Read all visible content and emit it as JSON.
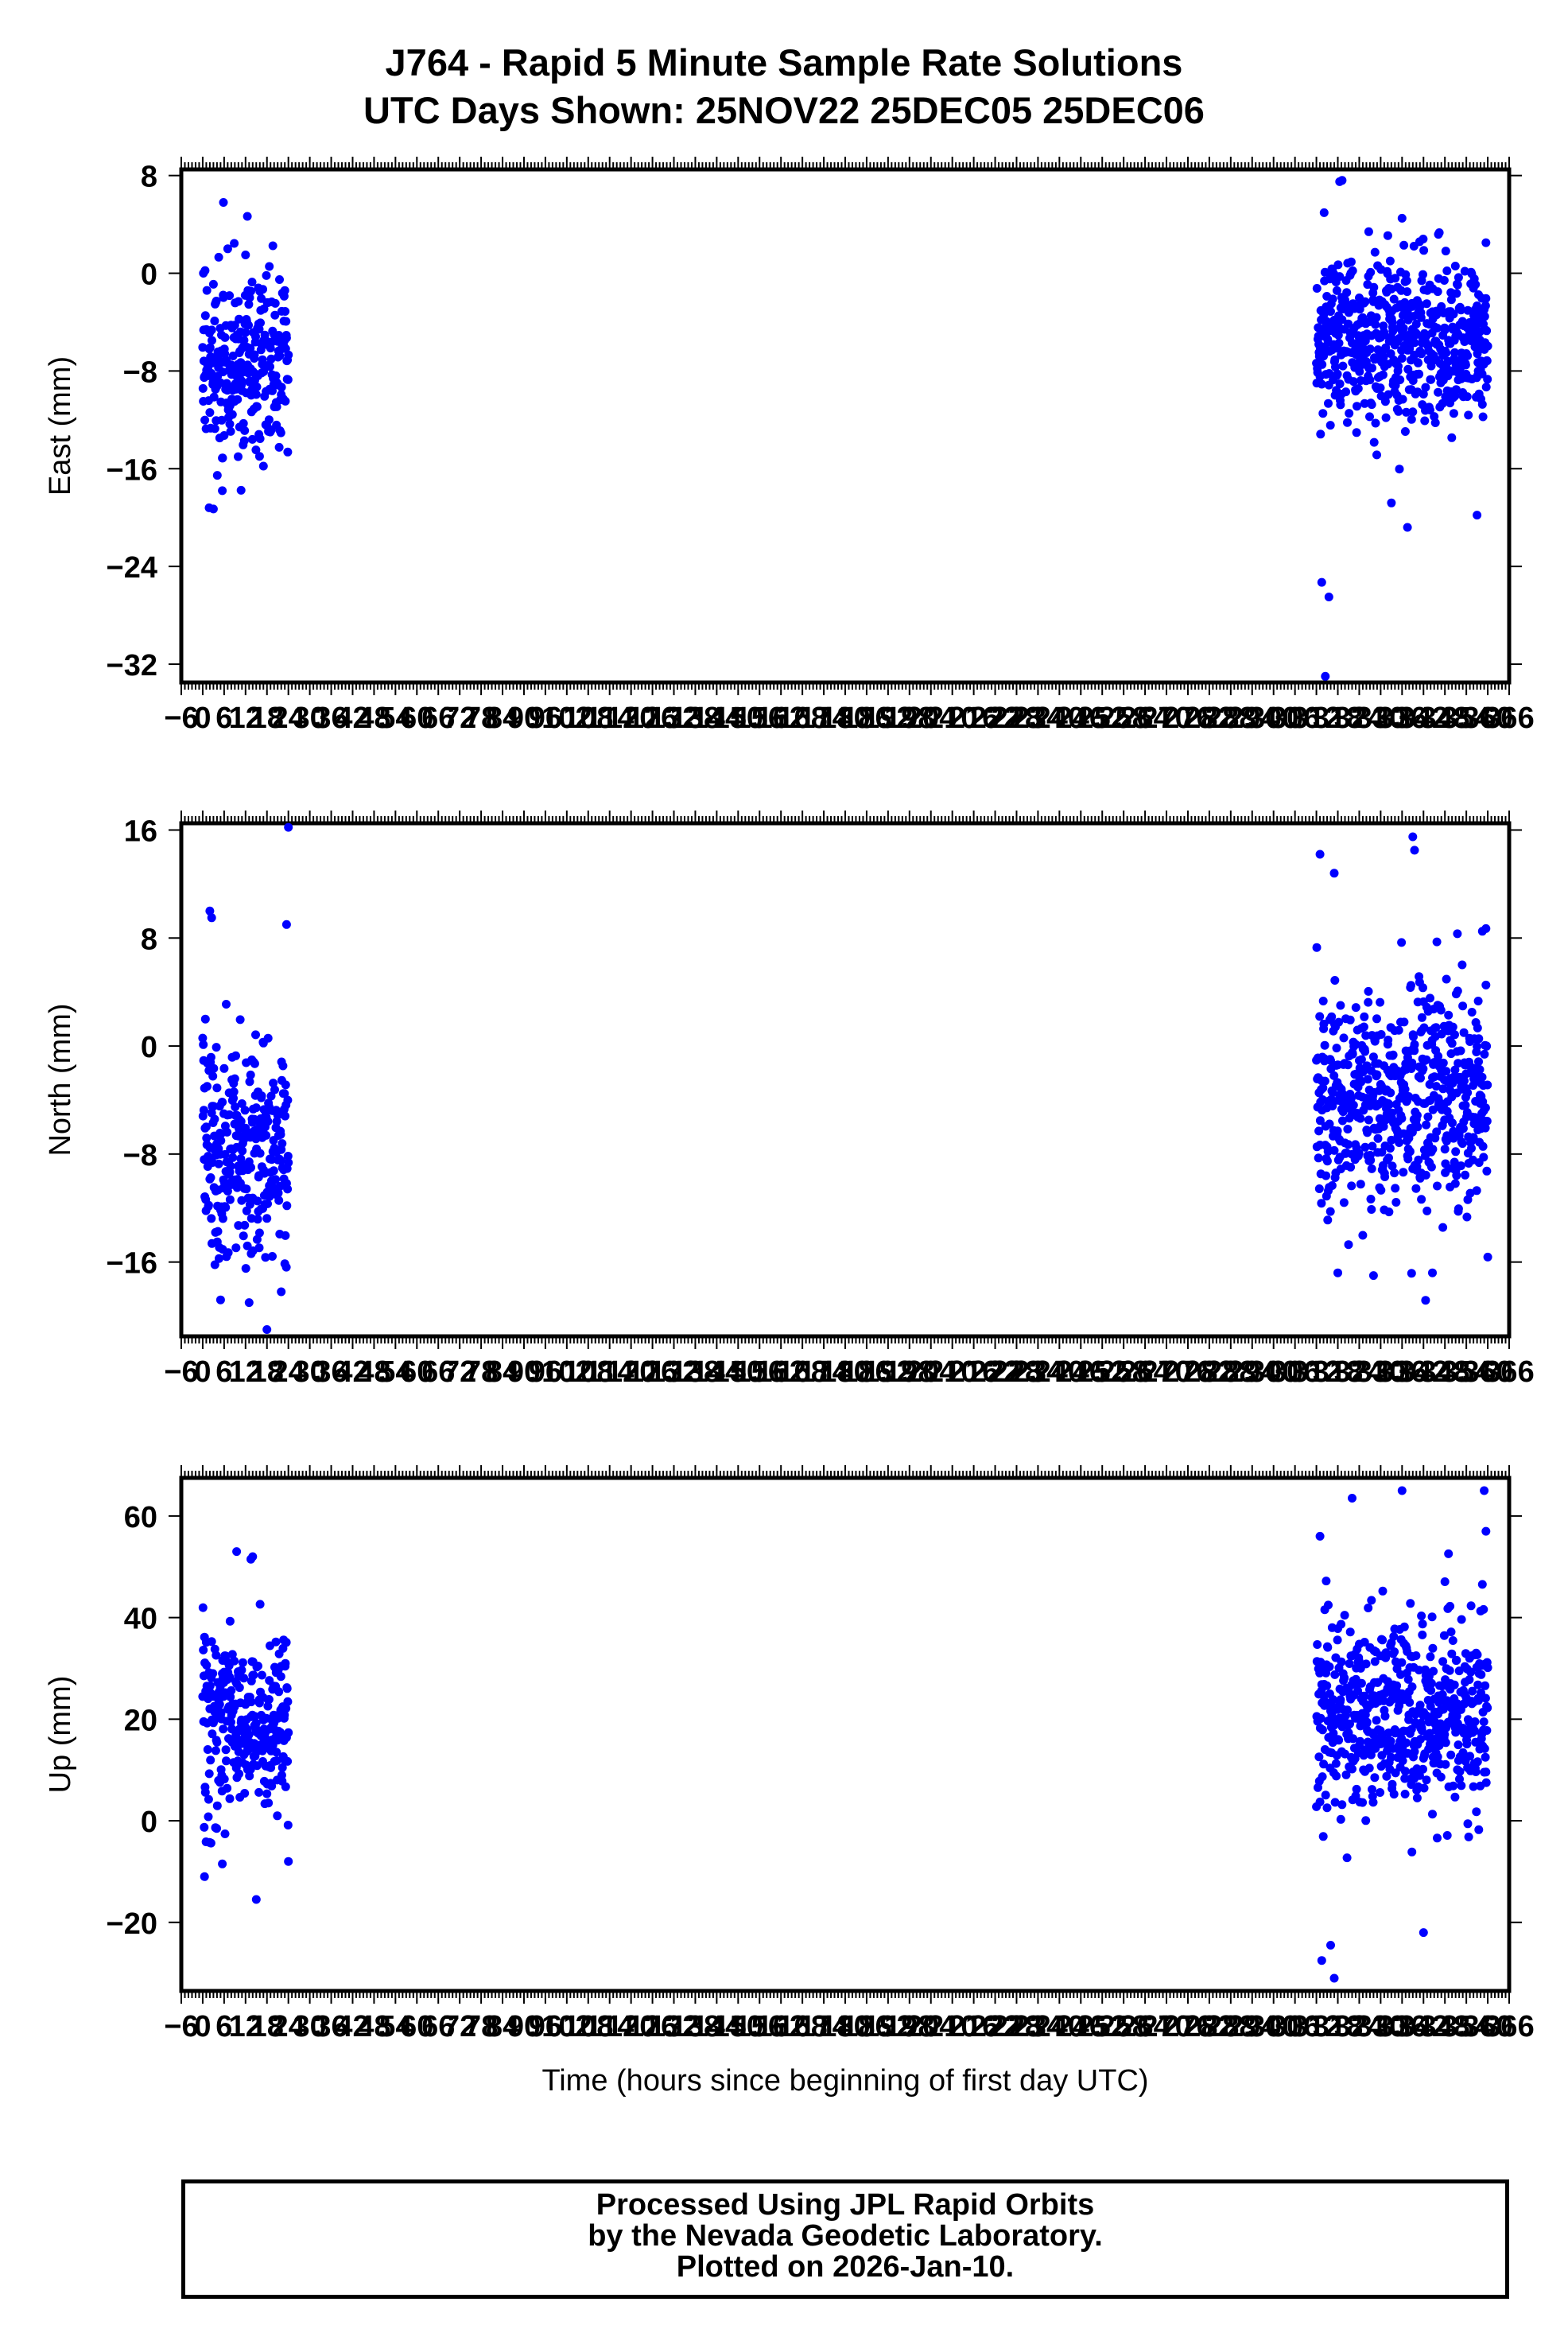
{
  "title_line1": "J764 - Rapid 5 Minute Sample Rate Solutions",
  "title_line2": "UTC Days Shown:  25NOV22 25DEC05 25DEC06",
  "footer": {
    "line1": "Processed Using JPL Rapid Orbits",
    "line2": "by the Nevada Geodetic Laboratory.",
    "line3": "Plotted on 2026-Jan-10."
  },
  "colors": {
    "points": "#0000ff",
    "frame": "#000000"
  },
  "chart_data": [
    {
      "type": "scatter",
      "name": "east",
      "ylabel": "East (mm)",
      "xlabel": "",
      "xlim": [
        -6,
        366
      ],
      "ylim": [
        -33.5,
        8.5
      ],
      "yticks": [
        8,
        0,
        -8,
        -16,
        -24,
        -32
      ],
      "xtick_labels": [
        "-6",
        "0",
        "6",
        "12",
        "18",
        "24",
        "30",
        "36",
        "42",
        "48",
        "54",
        "60",
        "66",
        "72",
        "78",
        "84",
        "90",
        "96",
        "102",
        "108",
        "114",
        "120",
        "126",
        "132",
        "138",
        "144",
        "150",
        "156",
        "162",
        "168",
        "174",
        "180",
        "186",
        "192",
        "198",
        "204",
        "210",
        "216",
        "222",
        "228",
        "234",
        "240",
        "246",
        "252",
        "258",
        "264",
        "270",
        "276",
        "282",
        "288",
        "294",
        "300",
        "306",
        "312",
        "318",
        "324",
        "330",
        "336",
        "342",
        "348",
        "354",
        "360",
        "366"
      ],
      "point_color": "#0000ff",
      "segments": [
        {
          "x_start": 0.0,
          "x_end": 24.0,
          "center": -7.5,
          "spread": 3.5,
          "extremes": [
            [
              0.2,
              0.0
            ],
            [
              5.8,
              5.8
            ],
            [
              7.0,
              2.0
            ],
            [
              12.0,
              1.5
            ],
            [
              1.8,
              -19.2
            ],
            [
              3.0,
              -19.3
            ],
            [
              5.5,
              -17.8
            ]
          ]
        },
        {
          "x_start": 312.0,
          "x_end": 360.0,
          "center": -5.5,
          "spread": 3.3,
          "extremes": [
            [
              318.5,
              7.5
            ],
            [
              319.2,
              7.6
            ],
            [
              336.0,
              4.5
            ],
            [
              313.5,
              -25.3
            ],
            [
              315.5,
              -26.5
            ],
            [
              314.5,
              -33.0
            ],
            [
              333.0,
              -18.8
            ],
            [
              337.5,
              -20.8
            ],
            [
              357.0,
              -19.8
            ],
            [
              359.5,
              2.5
            ]
          ]
        }
      ]
    },
    {
      "type": "scatter",
      "name": "north",
      "ylabel": "North (mm)",
      "xlabel": "",
      "xlim": [
        -6,
        366
      ],
      "ylim": [
        -21.5,
        16.5
      ],
      "yticks": [
        16,
        8,
        0,
        -8,
        -16
      ],
      "xtick_labels": [
        "-6",
        "0",
        "6",
        "12",
        "18",
        "24",
        "30",
        "36",
        "42",
        "48",
        "54",
        "60",
        "66",
        "72",
        "78",
        "84",
        "90",
        "96",
        "102",
        "108",
        "114",
        "120",
        "126",
        "132",
        "138",
        "144",
        "150",
        "156",
        "162",
        "168",
        "174",
        "180",
        "186",
        "192",
        "198",
        "204",
        "210",
        "216",
        "222",
        "228",
        "234",
        "240",
        "246",
        "252",
        "258",
        "264",
        "270",
        "276",
        "282",
        "288",
        "294",
        "300",
        "306",
        "312",
        "318",
        "324",
        "330",
        "336",
        "342",
        "348",
        "354",
        "360",
        "366"
      ],
      "point_color": "#0000ff",
      "segments": [
        {
          "x_start": 0.0,
          "x_end": 24.0,
          "center": -7.5,
          "spread": 4.0,
          "extremes": [
            [
              2.0,
              10.0
            ],
            [
              2.5,
              9.5
            ],
            [
              24.0,
              16.2
            ],
            [
              23.5,
              9.0
            ],
            [
              18.0,
              -21.0
            ],
            [
              5.0,
              -18.8
            ],
            [
              13.0,
              -19.0
            ],
            [
              22.0,
              -18.2
            ]
          ]
        },
        {
          "x_start": 312.0,
          "x_end": 360.0,
          "center": -4.0,
          "spread": 4.2,
          "extremes": [
            [
              313.0,
              14.2
            ],
            [
              317.0,
              12.8
            ],
            [
              339.0,
              15.5
            ],
            [
              339.5,
              14.5
            ],
            [
              358.5,
              8.5
            ],
            [
              359.5,
              8.7
            ],
            [
              318.0,
              -16.8
            ],
            [
              328.0,
              -17.0
            ],
            [
              344.5,
              -16.8
            ]
          ]
        }
      ]
    },
    {
      "type": "scatter",
      "name": "up",
      "ylabel": "Up (mm)",
      "xlabel": "Time (hours since beginning of first day UTC)",
      "xlim": [
        -6,
        366
      ],
      "ylim": [
        -33.5,
        67.5
      ],
      "yticks": [
        60,
        40,
        20,
        0,
        -20
      ],
      "xtick_labels": [
        "-6",
        "0",
        "6",
        "12",
        "18",
        "24",
        "30",
        "36",
        "42",
        "48",
        "54",
        "60",
        "66",
        "72",
        "78",
        "84",
        "90",
        "96",
        "102",
        "108",
        "114",
        "120",
        "126",
        "132",
        "138",
        "144",
        "150",
        "156",
        "162",
        "168",
        "174",
        "180",
        "186",
        "192",
        "198",
        "204",
        "210",
        "216",
        "222",
        "228",
        "234",
        "240",
        "246",
        "252",
        "258",
        "264",
        "270",
        "276",
        "282",
        "288",
        "294",
        "300",
        "306",
        "312",
        "318",
        "324",
        "330",
        "336",
        "342",
        "348",
        "354",
        "360",
        "366"
      ],
      "point_color": "#0000ff",
      "segments": [
        {
          "x_start": 0.0,
          "x_end": 24.0,
          "center": 20.0,
          "spread": 9.0,
          "extremes": [
            [
              9.5,
              53.0
            ],
            [
              14.0,
              52.0
            ],
            [
              13.5,
              51.5
            ],
            [
              15.0,
              -15.5
            ],
            [
              0.5,
              -11.0
            ],
            [
              5.5,
              -8.5
            ],
            [
              24.0,
              -8.0
            ]
          ]
        },
        {
          "x_start": 312.0,
          "x_end": 360.0,
          "center": 21.0,
          "spread": 10.0,
          "extremes": [
            [
              313.0,
              56.0
            ],
            [
              322.0,
              63.5
            ],
            [
              336.0,
              65.0
            ],
            [
              359.0,
              65.0
            ],
            [
              359.5,
              57.0
            ],
            [
              317.0,
              -31.0
            ],
            [
              313.5,
              -27.5
            ],
            [
              316.0,
              -24.5
            ],
            [
              342.0,
              -22.0
            ]
          ]
        }
      ]
    }
  ]
}
